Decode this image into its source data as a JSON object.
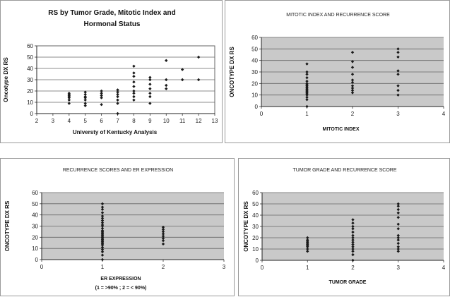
{
  "chart_data": [
    {
      "type": "scatter",
      "title": "RS by Tumor Grade, Mitotic Index and Hormonal Status",
      "title_lines": [
        "RS by Tumor Grade, Mitotic Index and",
        "Hormonal Status"
      ],
      "xlabel": "Universty of Kentucky Analysis",
      "ylabel": "Oncotype DX RS",
      "xlim": [
        2,
        13
      ],
      "ylim": [
        0,
        60
      ],
      "xticks": [
        2,
        3,
        4,
        5,
        6,
        7,
        8,
        9,
        10,
        11,
        12,
        13
      ],
      "yticks": [
        0,
        10,
        20,
        30,
        40,
        50,
        60
      ],
      "grid": true,
      "marker_color": "#1a1a1a",
      "points": [
        [
          4,
          9
        ],
        [
          4,
          12
        ],
        [
          4,
          14
        ],
        [
          4,
          15
        ],
        [
          4,
          16
        ],
        [
          4,
          17
        ],
        [
          4,
          18
        ],
        [
          5,
          7
        ],
        [
          5,
          9
        ],
        [
          5,
          12
        ],
        [
          5,
          14
        ],
        [
          5,
          15
        ],
        [
          5,
          17
        ],
        [
          5,
          19
        ],
        [
          6,
          8
        ],
        [
          6,
          14
        ],
        [
          6,
          16
        ],
        [
          6,
          18
        ],
        [
          6,
          20
        ],
        [
          7,
          0
        ],
        [
          7,
          9
        ],
        [
          7,
          12
        ],
        [
          7,
          15
        ],
        [
          7,
          17
        ],
        [
          7,
          19
        ],
        [
          7,
          21
        ],
        [
          8,
          12
        ],
        [
          8,
          15
        ],
        [
          8,
          18
        ],
        [
          8,
          20
        ],
        [
          8,
          24
        ],
        [
          8,
          28
        ],
        [
          8,
          33
        ],
        [
          8,
          36
        ],
        [
          8,
          42
        ],
        [
          9,
          9
        ],
        [
          9,
          15
        ],
        [
          9,
          18
        ],
        [
          9,
          22
        ],
        [
          9,
          26
        ],
        [
          9,
          30
        ],
        [
          9,
          32
        ],
        [
          10,
          22
        ],
        [
          10,
          25
        ],
        [
          10,
          30
        ],
        [
          10,
          47
        ],
        [
          11,
          30
        ],
        [
          11,
          39
        ],
        [
          12,
          30
        ],
        [
          12,
          50
        ]
      ]
    },
    {
      "type": "scatter",
      "title": "MITOTIC INDEX AND RECURRENCE SCORE",
      "xlabel": "MITOTIC INDEX",
      "ylabel": "ONCOTYPE DX RS",
      "xlim": [
        0,
        4
      ],
      "ylim": [
        0,
        60
      ],
      "xticks": [
        0,
        1,
        2,
        3,
        4
      ],
      "yticks": [
        0,
        10,
        20,
        30,
        40,
        50,
        60
      ],
      "grid": true,
      "marker_color": "#1a1a1a",
      "points": [
        [
          1,
          0
        ],
        [
          1,
          6
        ],
        [
          1,
          8
        ],
        [
          1,
          10
        ],
        [
          1,
          11
        ],
        [
          1,
          12
        ],
        [
          1,
          13
        ],
        [
          1,
          14
        ],
        [
          1,
          15
        ],
        [
          1,
          16
        ],
        [
          1,
          17
        ],
        [
          1,
          18
        ],
        [
          1,
          19
        ],
        [
          1,
          20
        ],
        [
          1,
          22
        ],
        [
          1,
          25
        ],
        [
          1,
          28
        ],
        [
          1,
          30
        ],
        [
          1,
          37
        ],
        [
          2,
          12
        ],
        [
          2,
          14
        ],
        [
          2,
          16
        ],
        [
          2,
          18
        ],
        [
          2,
          21
        ],
        [
          2,
          23
        ],
        [
          2,
          28
        ],
        [
          2,
          34
        ],
        [
          2,
          39
        ],
        [
          2,
          47
        ],
        [
          3,
          10
        ],
        [
          3,
          14
        ],
        [
          3,
          18
        ],
        [
          3,
          28
        ],
        [
          3,
          31
        ],
        [
          3,
          43
        ],
        [
          3,
          47
        ],
        [
          3,
          50
        ]
      ]
    },
    {
      "type": "scatter",
      "title": "RECURRENCE SCORES AND ER EXPRESSION",
      "xlabel": "ER EXPRESSION",
      "xlabel2": "(1 = >90% ; 2 = < 90%)",
      "ylabel": "ONCOTYPE DX RS",
      "xlim": [
        0,
        3
      ],
      "ylim": [
        0,
        60
      ],
      "xticks": [
        0,
        1,
        2,
        3
      ],
      "yticks": [
        0,
        10,
        20,
        30,
        40,
        50,
        60
      ],
      "grid": true,
      "marker_color": "#1a1a1a",
      "points": [
        [
          1,
          0
        ],
        [
          1,
          4
        ],
        [
          1,
          7
        ],
        [
          1,
          9
        ],
        [
          1,
          11
        ],
        [
          1,
          13
        ],
        [
          1,
          14
        ],
        [
          1,
          15
        ],
        [
          1,
          16
        ],
        [
          1,
          17
        ],
        [
          1,
          18
        ],
        [
          1,
          19
        ],
        [
          1,
          20
        ],
        [
          1,
          21
        ],
        [
          1,
          22
        ],
        [
          1,
          23
        ],
        [
          1,
          24
        ],
        [
          1,
          25
        ],
        [
          1,
          26
        ],
        [
          1,
          28
        ],
        [
          1,
          30
        ],
        [
          1,
          31
        ],
        [
          1,
          33
        ],
        [
          1,
          35
        ],
        [
          1,
          37
        ],
        [
          1,
          39
        ],
        [
          1,
          42
        ],
        [
          1,
          45
        ],
        [
          1,
          47
        ],
        [
          1,
          50
        ],
        [
          2,
          14
        ],
        [
          2,
          17
        ],
        [
          2,
          19
        ],
        [
          2,
          21
        ],
        [
          2,
          23
        ],
        [
          2,
          25
        ],
        [
          2,
          27
        ],
        [
          2,
          29
        ]
      ]
    },
    {
      "type": "scatter",
      "title": "TUMOR GRADE AND RECURRENCE SCORE",
      "xlabel": "TUMOR GRADE",
      "ylabel": "ONCOTYPE DX RS",
      "xlim": [
        0,
        4
      ],
      "ylim": [
        0,
        60
      ],
      "xticks": [
        0,
        1,
        2,
        3,
        4
      ],
      "yticks": [
        0,
        10,
        20,
        30,
        40,
        50,
        60
      ],
      "grid": true,
      "marker_color": "#1a1a1a",
      "points": [
        [
          1,
          8
        ],
        [
          1,
          10
        ],
        [
          1,
          12
        ],
        [
          1,
          13
        ],
        [
          1,
          14
        ],
        [
          1,
          15
        ],
        [
          1,
          16
        ],
        [
          1,
          17
        ],
        [
          1,
          18
        ],
        [
          1,
          20
        ],
        [
          2,
          0
        ],
        [
          2,
          5
        ],
        [
          2,
          8
        ],
        [
          2,
          10
        ],
        [
          2,
          12
        ],
        [
          2,
          14
        ],
        [
          2,
          16
        ],
        [
          2,
          18
        ],
        [
          2,
          20
        ],
        [
          2,
          22
        ],
        [
          2,
          25
        ],
        [
          2,
          28
        ],
        [
          2,
          30
        ],
        [
          2,
          33
        ],
        [
          2,
          36
        ],
        [
          3,
          8
        ],
        [
          3,
          10
        ],
        [
          3,
          12
        ],
        [
          3,
          15
        ],
        [
          3,
          18
        ],
        [
          3,
          20
        ],
        [
          3,
          22
        ],
        [
          3,
          28
        ],
        [
          3,
          32
        ],
        [
          3,
          38
        ],
        [
          3,
          42
        ],
        [
          3,
          45
        ],
        [
          3,
          48
        ],
        [
          3,
          50
        ]
      ]
    }
  ]
}
